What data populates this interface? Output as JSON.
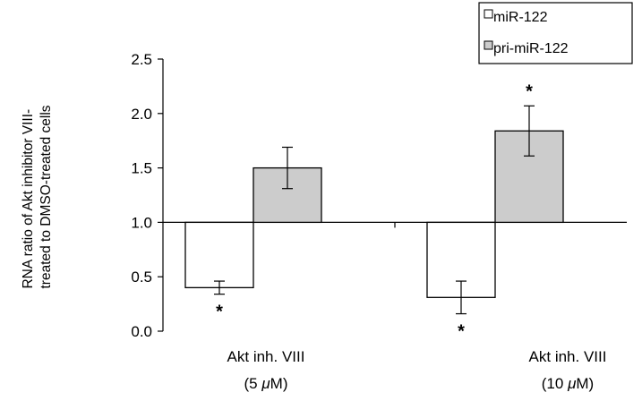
{
  "chart_data": {
    "type": "bar",
    "ylabel_lines": [
      "RNA ratio of Akt inhibitor VIII-",
      "treated to DMSO-treated cells"
    ],
    "categories": [
      {
        "line1": "Akt inh. VIII",
        "line2_prefix": "(5 ",
        "line2_mu": "μ",
        "line2_suffix": "M)"
      },
      {
        "line1": "Akt inh. VIII",
        "line2_prefix": "(10 ",
        "line2_mu": "μ",
        "line2_suffix": "M)"
      }
    ],
    "baseline": 1.0,
    "ylim": [
      0,
      2.5
    ],
    "yticks": [
      "0.0",
      "0.5",
      "1.0",
      "1.5",
      "2.0",
      "2.5"
    ],
    "series": [
      {
        "name": "miR-122",
        "color": "#ffffff",
        "values": [
          0.4,
          0.31
        ],
        "errors": [
          0.06,
          0.15
        ],
        "significance": [
          "*",
          "*"
        ]
      },
      {
        "name": "pri-miR-122",
        "color": "#cccccc",
        "values": [
          1.5,
          1.84
        ],
        "errors": [
          0.19,
          0.23
        ],
        "significance": [
          "",
          "*"
        ]
      }
    ],
    "legend_position": "top-right",
    "grid": false
  }
}
